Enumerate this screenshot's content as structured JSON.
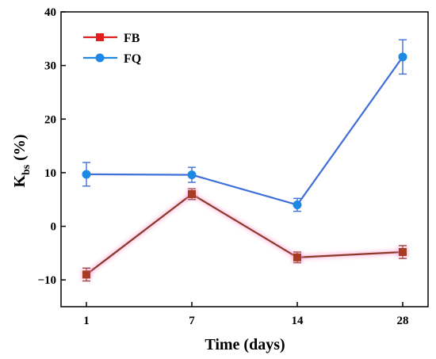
{
  "chart_data": {
    "type": "line",
    "xlabel": "Time (days)",
    "ylabel": {
      "main": "K",
      "sub": "bs",
      "suffix": " (%)"
    },
    "categories": [
      "1",
      "7",
      "14",
      "28"
    ],
    "ylim": [
      -15,
      40
    ],
    "yticks": [
      -10,
      0,
      10,
      20,
      30,
      40
    ],
    "ytick_labels": [
      "−10",
      "0",
      "10",
      "20",
      "30",
      "40"
    ],
    "grid": false,
    "legend_position": "top-left",
    "series": [
      {
        "name": "FB",
        "marker": "square",
        "color": "#e02020",
        "line_color": "#8b3a2a",
        "marker_color": "#a83c22",
        "values": [
          -9.0,
          6.0,
          -5.8,
          -4.8
        ],
        "errors": [
          1.2,
          1.0,
          1.0,
          1.2
        ]
      },
      {
        "name": "FQ",
        "marker": "circle",
        "color": "#1e88e5",
        "line_color": "#3f6fd8",
        "marker_color": "#1e88e5",
        "values": [
          9.7,
          9.6,
          4.0,
          31.6
        ],
        "errors": [
          2.2,
          1.4,
          1.2,
          3.2
        ]
      }
    ]
  }
}
